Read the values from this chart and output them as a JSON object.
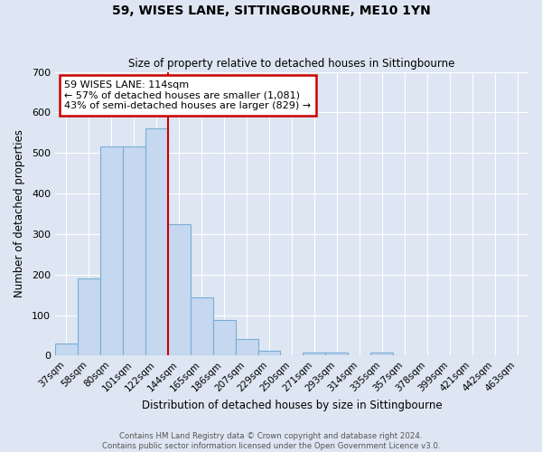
{
  "title": "59, WISES LANE, SITTINGBOURNE, ME10 1YN",
  "subtitle": "Size of property relative to detached houses in Sittingbourne",
  "xlabel": "Distribution of detached houses by size in Sittingbourne",
  "ylabel": "Number of detached properties",
  "categories": [
    "37sqm",
    "58sqm",
    "80sqm",
    "101sqm",
    "122sqm",
    "144sqm",
    "165sqm",
    "186sqm",
    "207sqm",
    "229sqm",
    "250sqm",
    "271sqm",
    "293sqm",
    "314sqm",
    "335sqm",
    "357sqm",
    "378sqm",
    "399sqm",
    "421sqm",
    "442sqm",
    "463sqm"
  ],
  "values": [
    30,
    190,
    515,
    515,
    560,
    325,
    143,
    87,
    40,
    12,
    0,
    8,
    8,
    0,
    8,
    0,
    0,
    0,
    0,
    0,
    0
  ],
  "bar_color": "#c5d8f0",
  "bar_edge_color": "#7aadd4",
  "background_color": "#dde6f2",
  "grid_color": "#ffffff",
  "property_line_color": "#cc0000",
  "annotation_text_line1": "59 WISES LANE: 114sqm",
  "annotation_text_line2": "← 57% of detached houses are smaller (1,081)",
  "annotation_text_line3": "43% of semi-detached houses are larger (829) →",
  "annotation_box_color": "#ffffff",
  "annotation_box_edge": "#cc0000",
  "footer": "Contains HM Land Registry data © Crown copyright and database right 2024.\nContains public sector information licensed under the Open Government Licence v3.0.",
  "ylim": [
    0,
    700
  ],
  "yticks": [
    0,
    100,
    200,
    300,
    400,
    500,
    600,
    700
  ],
  "property_bar_index": 4
}
